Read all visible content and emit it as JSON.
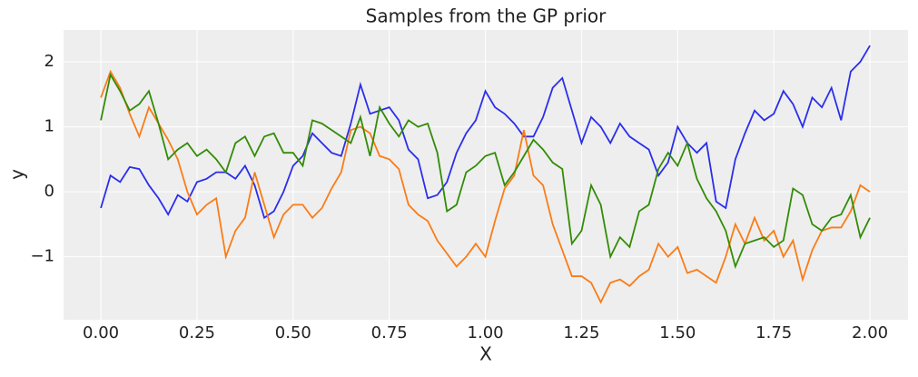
{
  "chart_data": {
    "type": "line",
    "title": "Samples from the GP prior",
    "xlabel": "X",
    "ylabel": "y",
    "x": [
      0,
      0.025,
      0.05,
      0.075,
      0.1,
      0.125,
      0.15,
      0.175,
      0.2,
      0.225,
      0.25,
      0.275,
      0.3,
      0.325,
      0.35,
      0.375,
      0.4,
      0.425,
      0.45,
      0.475,
      0.5,
      0.525,
      0.55,
      0.575,
      0.6,
      0.625,
      0.65,
      0.675,
      0.7,
      0.725,
      0.75,
      0.775,
      0.8,
      0.825,
      0.85,
      0.875,
      0.9,
      0.925,
      0.95,
      0.975,
      1.0,
      1.025,
      1.05,
      1.075,
      1.1,
      1.125,
      1.15,
      1.175,
      1.2,
      1.225,
      1.25,
      1.275,
      1.3,
      1.325,
      1.35,
      1.375,
      1.4,
      1.425,
      1.45,
      1.475,
      1.5,
      1.525,
      1.55,
      1.575,
      1.6,
      1.625,
      1.65,
      1.675,
      1.7,
      1.725,
      1.75,
      1.775,
      1.8,
      1.825,
      1.85,
      1.875,
      1.9,
      1.925,
      1.95,
      1.975,
      2.0
    ],
    "series": [
      {
        "color": "#2a2eec",
        "values": [
          -0.25,
          0.25,
          0.15,
          0.38,
          0.35,
          0.1,
          -0.1,
          -0.35,
          -0.05,
          -0.15,
          0.15,
          0.2,
          0.3,
          0.3,
          0.2,
          0.4,
          0.1,
          -0.4,
          -0.3,
          0.0,
          0.4,
          0.55,
          0.9,
          0.75,
          0.6,
          0.55,
          1.05,
          1.65,
          1.2,
          1.25,
          1.3,
          1.1,
          0.65,
          0.5,
          -0.1,
          -0.05,
          0.15,
          0.6,
          0.9,
          1.1,
          1.55,
          1.3,
          1.2,
          1.05,
          0.85,
          0.85,
          1.15,
          1.6,
          1.75,
          1.25,
          0.75,
          1.15,
          1.0,
          0.75,
          1.05,
          0.85,
          0.75,
          0.65,
          0.25,
          0.45,
          1.0,
          0.75,
          0.6,
          0.75,
          -0.15,
          -0.25,
          0.5,
          0.9,
          1.25,
          1.1,
          1.2,
          1.55,
          1.35,
          1.0,
          1.45,
          1.3,
          1.6,
          1.1,
          1.85,
          2.0,
          2.25
        ]
      },
      {
        "color": "#fa7c17",
        "values": [
          1.45,
          1.85,
          1.6,
          1.2,
          0.85,
          1.3,
          1.05,
          0.8,
          0.5,
          0.0,
          -0.35,
          -0.2,
          -0.1,
          -1.0,
          -0.6,
          -0.4,
          0.3,
          -0.2,
          -0.7,
          -0.35,
          -0.2,
          -0.2,
          -0.4,
          -0.25,
          0.05,
          0.3,
          0.95,
          1.0,
          0.9,
          0.55,
          0.5,
          0.35,
          -0.2,
          -0.35,
          -0.45,
          -0.75,
          -0.95,
          -1.15,
          -1.0,
          -0.8,
          -1.0,
          -0.45,
          0.05,
          0.25,
          0.95,
          0.25,
          0.1,
          -0.5,
          -0.9,
          -1.3,
          -1.3,
          -1.4,
          -1.7,
          -1.4,
          -1.35,
          -1.45,
          -1.3,
          -1.2,
          -0.8,
          -1.0,
          -0.85,
          -1.25,
          -1.2,
          -1.3,
          -1.4,
          -1.0,
          -0.5,
          -0.8,
          -0.4,
          -0.75,
          -0.6,
          -1.0,
          -0.75,
          -1.35,
          -0.9,
          -0.6,
          -0.55,
          -0.55,
          -0.3,
          0.1,
          0.0
        ]
      },
      {
        "color": "#328c06",
        "values": [
          1.1,
          1.8,
          1.55,
          1.25,
          1.35,
          1.55,
          1.05,
          0.5,
          0.65,
          0.75,
          0.55,
          0.65,
          0.5,
          0.3,
          0.75,
          0.85,
          0.55,
          0.85,
          0.9,
          0.6,
          0.6,
          0.4,
          1.1,
          1.05,
          0.95,
          0.85,
          0.75,
          1.15,
          0.55,
          1.3,
          1.05,
          0.85,
          1.1,
          1.0,
          1.05,
          0.6,
          -0.3,
          -0.2,
          0.3,
          0.4,
          0.55,
          0.6,
          0.1,
          0.3,
          0.55,
          0.8,
          0.65,
          0.45,
          0.35,
          -0.8,
          -0.6,
          0.1,
          -0.2,
          -1.0,
          -0.7,
          -0.85,
          -0.3,
          -0.2,
          0.35,
          0.6,
          0.4,
          0.75,
          0.2,
          -0.1,
          -0.3,
          -0.6,
          -1.15,
          -0.8,
          -0.75,
          -0.7,
          -0.85,
          -0.75,
          0.05,
          -0.05,
          -0.5,
          -0.6,
          -0.4,
          -0.35,
          -0.05,
          -0.7,
          -0.4
        ]
      }
    ],
    "xlim": [
      -0.097,
      2.099
    ],
    "ylim": [
      -1.97,
      2.49
    ],
    "xticks": [
      {
        "value": 0,
        "label": "0.00"
      },
      {
        "value": 0.25,
        "label": "0.25"
      },
      {
        "value": 0.5,
        "label": "0.50"
      },
      {
        "value": 0.75,
        "label": "0.75"
      },
      {
        "value": 1,
        "label": "1.00"
      },
      {
        "value": 1.25,
        "label": "1.25"
      },
      {
        "value": 1.5,
        "label": "1.50"
      },
      {
        "value": 1.75,
        "label": "1.75"
      },
      {
        "value": 2,
        "label": "2.00"
      }
    ],
    "yticks": [
      {
        "value": -1,
        "label": "−1"
      },
      0,
      1,
      2
    ],
    "grid": true
  }
}
